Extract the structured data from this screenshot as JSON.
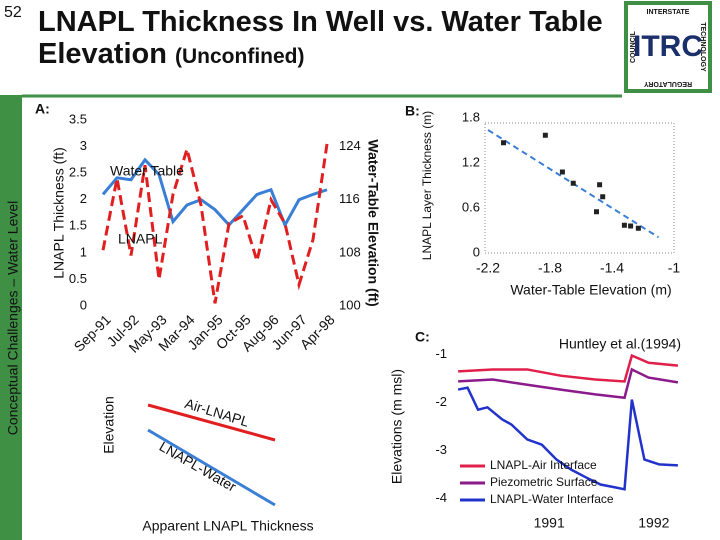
{
  "slide": {
    "number": "52",
    "title": "LNAPL Thickness In Well vs. Water Table Elevation",
    "subtitle": "(Unconfined)",
    "sidebar": "Conceptual Challenges – Water Level"
  },
  "logo": {
    "name": "ITRC",
    "top": "INTERSTATE",
    "right": "TECHNOLOGY",
    "left": "COUNCIL",
    "bottom": "REGULATORY"
  },
  "chart_data": [
    {
      "type": "line",
      "panel": "A:",
      "y_label": "LNAPL Thickness (ft)",
      "y2_label": "Water-Table Elevation (ft)",
      "categories": [
        "Sep-91",
        null,
        "Jul-92",
        null,
        "May-93",
        null,
        "Mar-94",
        null,
        "Jan-95",
        null,
        "Oct-95",
        null,
        "Aug-96",
        null,
        "Jun-97",
        null,
        "Apr-98"
      ],
      "ylim": [
        0,
        3.5
      ],
      "yticks": [
        0,
        0.5,
        1,
        1.5,
        2,
        2.5,
        3,
        3.5
      ],
      "y2lim": [
        100,
        128
      ],
      "y2ticks": [
        100,
        108,
        116,
        124
      ],
      "series": [
        {
          "name": "Water Table",
          "color": "#3a7fd6",
          "axis": "y2",
          "values": [
            116.8,
            119.3,
            119,
            122,
            119.8,
            112.7,
            115.2,
            116,
            114.5,
            112.2,
            114.5,
            116.8,
            117.5,
            112.2,
            116,
            116.8,
            117.5
          ]
        },
        {
          "name": "LNAPL",
          "color": "#e02020",
          "line_style": "dashed",
          "values": [
            1.05,
            2.4,
            0.95,
            2.65,
            0.5,
            2.1,
            2.95,
            1.9,
            0.05,
            1.55,
            1.7,
            0.85,
            2,
            1.55,
            0.4,
            1.25,
            3.05
          ]
        }
      ]
    },
    {
      "type": "scatter",
      "panel": "B:",
      "y_label": "LNAPL Layer Thickness (m)",
      "x_label": "Water-Table Elevation (m)",
      "x": [
        -2.1,
        -1.83,
        -1.72,
        -1.65,
        -1.48,
        -1.46,
        -1.5,
        -1.32,
        -1.28,
        -1.23
      ],
      "values": [
        1.47,
        1.57,
        1.08,
        0.93,
        0.91,
        0.75,
        0.55,
        0.37,
        0.36,
        0.33
      ],
      "color": "#222222",
      "xlim": [
        -2.2,
        -1
      ],
      "xticks": [
        -2.2,
        -1.8,
        -1.4,
        -1
      ],
      "ylim": [
        0,
        1.8
      ],
      "yticks": [
        0,
        0.6,
        1.2,
        1.8
      ],
      "trendline": {
        "color": "#3a7fd6",
        "x": [
          -2.2,
          -1.1
        ],
        "values": [
          1.64,
          0.21
        ]
      }
    },
    {
      "type": "line",
      "panel": "C:",
      "y_label": "Elevations (m msl)",
      "annotation": "Huntley et al.(1994)",
      "xlim": [
        1990.1,
        1992.25
      ],
      "xticks": [
        1991,
        1992
      ],
      "ylim": [
        -4.2,
        -0.8
      ],
      "yticks": [
        -1,
        -2,
        -3,
        -4
      ],
      "legend": "lower left",
      "series": [
        {
          "name": "LNAPL-Air Interface",
          "color": "#e0204a",
          "x": [
            1990.13,
            1990.46,
            1990.79,
            1991.11,
            1991.44,
            1991.72,
            1991.79,
            1991.95,
            1992.23
          ],
          "values": [
            -1.35,
            -1.31,
            -1.31,
            -1.44,
            -1.52,
            -1.56,
            -1.02,
            -1.17,
            -1.23
          ]
        },
        {
          "name": "Piezometric Surface",
          "color": "#8b1a8b",
          "x": [
            1990.13,
            1990.46,
            1990.79,
            1991.11,
            1991.44,
            1991.72,
            1991.79,
            1991.95,
            1992.23
          ],
          "values": [
            -1.56,
            -1.52,
            -1.63,
            -1.73,
            -1.83,
            -1.9,
            -1.31,
            -1.48,
            -1.58
          ]
        },
        {
          "name": "LNAPL-Water Interface",
          "color": "#2233cc",
          "x": [
            1990.13,
            1990.22,
            1990.32,
            1990.41,
            1990.55,
            1990.64,
            1990.79,
            1990.93,
            1991.07,
            1991.21,
            1991.35,
            1991.49,
            1991.63,
            1991.72,
            1991.79,
            1991.91,
            1992.05,
            1992.23
          ],
          "values": [
            -1.73,
            -1.69,
            -2.15,
            -2.1,
            -2.35,
            -2.46,
            -2.77,
            -2.88,
            -3.19,
            -3.4,
            -3.56,
            -3.71,
            -3.77,
            -3.81,
            -1.94,
            -3.19,
            -3.29,
            -3.31
          ]
        }
      ]
    }
  ],
  "diagram": {
    "y_label": "Elevation",
    "x_label": "Apparent LNAPL Thickness",
    "lines": [
      {
        "label": "Air-LNAPL"
      },
      {
        "label": "LNAPL-Water"
      }
    ]
  }
}
